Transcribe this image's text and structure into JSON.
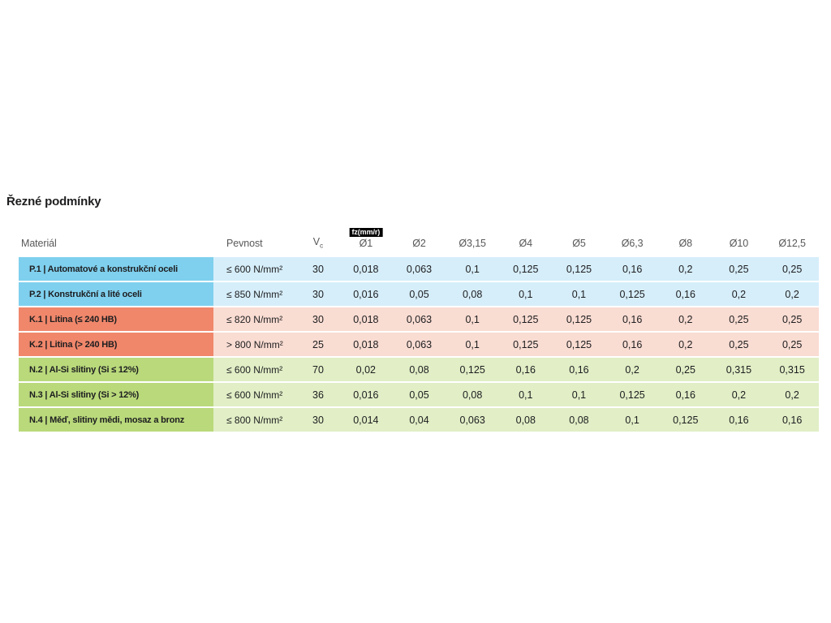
{
  "title": "Řezné podmínky",
  "colors": {
    "steel_dark": "#7fd0ee",
    "steel_light": "#d6eefa",
    "cast_iron_dark": "#f0876b",
    "cast_iron_light": "#f9dcd2",
    "non_ferrous_dark": "#b9d97b",
    "non_ferrous_light": "#e1eec6",
    "badge_bg": "#000000",
    "badge_text": "#ffffff",
    "header_text": "#58585a",
    "body_text": "#1d1d1f"
  },
  "table": {
    "fz_badge": "fz(mm/r)",
    "columns": {
      "material": "Materiál",
      "strength": "Pevnost",
      "vc_base": "V",
      "vc_sub": "c",
      "diameters": [
        "Ø1",
        "Ø2",
        "Ø3,15",
        "Ø4",
        "Ø5",
        "Ø6,3",
        "Ø8",
        "Ø10",
        "Ø12,5"
      ]
    },
    "rows": [
      {
        "group": "steel",
        "material": "P.1 | Automatové a konstrukční oceli",
        "strength": "≤ 600 N/mm²",
        "vc": "30",
        "values": [
          "0,018",
          "0,063",
          "0,1",
          "0,125",
          "0,125",
          "0,16",
          "0,2",
          "0,25",
          "0,25"
        ]
      },
      {
        "group": "steel",
        "material": "P.2 | Konstrukční a lité oceli",
        "strength": "≤ 850 N/mm²",
        "vc": "30",
        "values": [
          "0,016",
          "0,05",
          "0,08",
          "0,1",
          "0,1",
          "0,125",
          "0,16",
          "0,2",
          "0,2"
        ]
      },
      {
        "group": "cast-iron",
        "material": "K.1 | Litina (≤ 240 HB)",
        "strength": "≤ 820 N/mm²",
        "vc": "30",
        "values": [
          "0,018",
          "0,063",
          "0,1",
          "0,125",
          "0,125",
          "0,16",
          "0,2",
          "0,25",
          "0,25"
        ]
      },
      {
        "group": "cast-iron",
        "material": "K.2 | Litina (> 240 HB)",
        "strength": "> 800 N/mm²",
        "vc": "25",
        "values": [
          "0,018",
          "0,063",
          "0,1",
          "0,125",
          "0,125",
          "0,16",
          "0,2",
          "0,25",
          "0,25"
        ]
      },
      {
        "group": "non-ferrous",
        "material": "N.2 | Al-Si slitiny (Si ≤ 12%)",
        "strength": "≤ 600 N/mm²",
        "vc": "70",
        "values": [
          "0,02",
          "0,08",
          "0,125",
          "0,16",
          "0,16",
          "0,2",
          "0,25",
          "0,315",
          "0,315"
        ]
      },
      {
        "group": "non-ferrous",
        "material": "N.3 | Al-Si slitiny (Si > 12%)",
        "strength": "≤ 600 N/mm²",
        "vc": "36",
        "values": [
          "0,016",
          "0,05",
          "0,08",
          "0,1",
          "0,1",
          "0,125",
          "0,16",
          "0,2",
          "0,2"
        ]
      },
      {
        "group": "non-ferrous",
        "material": "N.4 | Měď, slitiny mědi, mosaz a bronz",
        "strength": "≤ 800 N/mm²",
        "vc": "30",
        "values": [
          "0,014",
          "0,04",
          "0,063",
          "0,08",
          "0,08",
          "0,1",
          "0,125",
          "0,16",
          "0,16"
        ]
      }
    ]
  }
}
